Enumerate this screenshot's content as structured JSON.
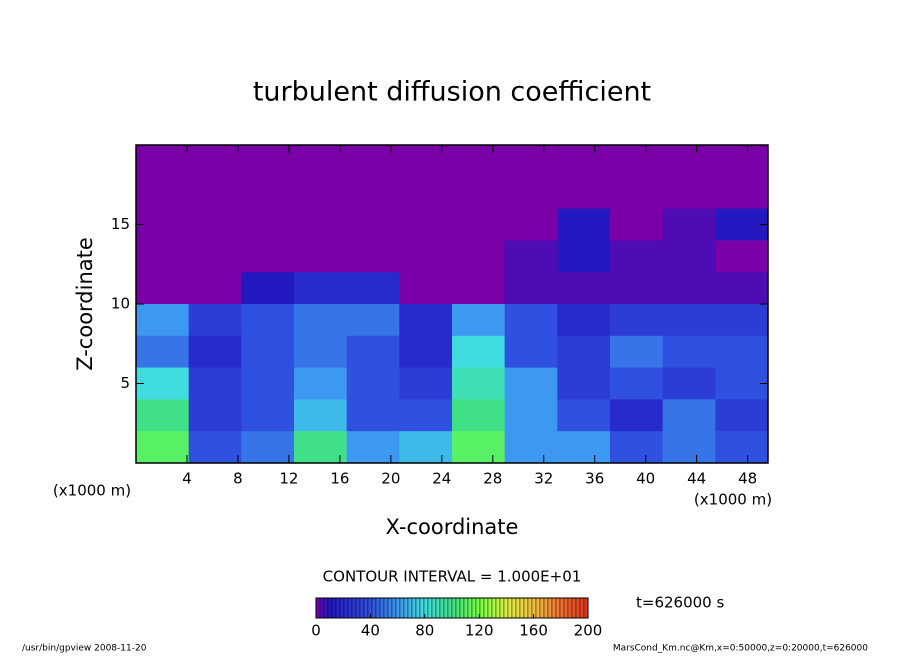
{
  "chart_data": {
    "type": "heatmap",
    "title": "turbulent diffusion coefficient",
    "x_label": "X-coordinate",
    "y_label": "Z-coordinate",
    "x_unit": "(x1000 m)",
    "xlim": [
      0,
      49.6
    ],
    "ylim": [
      0,
      20
    ],
    "xticks": [
      4,
      8,
      12,
      16,
      20,
      24,
      28,
      32,
      36,
      40,
      44,
      48
    ],
    "yticks": [
      5,
      10,
      15
    ],
    "values": [
      [
        0,
        0,
        0,
        0,
        0,
        0,
        0,
        0,
        0,
        0,
        0,
        0
      ],
      [
        0,
        0,
        0,
        0,
        0,
        0,
        0,
        0,
        0,
        0,
        0,
        0
      ],
      [
        0,
        0,
        0,
        0,
        0,
        0,
        0,
        0,
        10,
        0,
        5,
        10
      ],
      [
        0,
        0,
        0,
        0,
        0,
        0,
        0,
        5,
        10,
        5,
        5,
        0
      ],
      [
        0,
        0,
        10,
        20,
        20,
        0,
        0,
        5,
        5,
        5,
        5,
        5
      ],
      [
        60,
        30,
        40,
        50,
        50,
        20,
        60,
        40,
        20,
        30,
        30,
        30
      ],
      [
        50,
        20,
        40,
        50,
        40,
        20,
        80,
        40,
        30,
        50,
        40,
        40
      ],
      [
        80,
        30,
        40,
        60,
        40,
        30,
        90,
        60,
        30,
        40,
        30,
        40
      ],
      [
        100,
        30,
        40,
        70,
        40,
        40,
        100,
        60,
        40,
        20,
        50,
        30
      ],
      [
        110,
        40,
        50,
        100,
        60,
        70,
        110,
        60,
        60,
        40,
        50,
        40
      ]
    ],
    "colorscale": [
      [
        0,
        "#7a00a8"
      ],
      [
        10,
        "#2418c0"
      ],
      [
        40,
        "#3050e0"
      ],
      [
        60,
        "#3c98f0"
      ],
      [
        80,
        "#40dce0"
      ],
      [
        100,
        "#40e088"
      ],
      [
        120,
        "#70ff40"
      ],
      [
        140,
        "#d8f040"
      ],
      [
        160,
        "#f0c040"
      ],
      [
        180,
        "#f07030"
      ],
      [
        200,
        "#e03020"
      ]
    ],
    "contour_interval": "CONTOUR INTERVAL = 1.000E+01",
    "colorbar_lim": [
      0,
      200
    ],
    "colorbar_ticks": [
      0,
      40,
      80,
      120,
      160,
      200
    ],
    "time_label": "t=626000 s",
    "footer_left": "/usr/bin/gpview  2008-11-20",
    "footer_right": "MarsCond_Km.nc@Km,x=0:50000,z=0:20000,t=626000"
  }
}
